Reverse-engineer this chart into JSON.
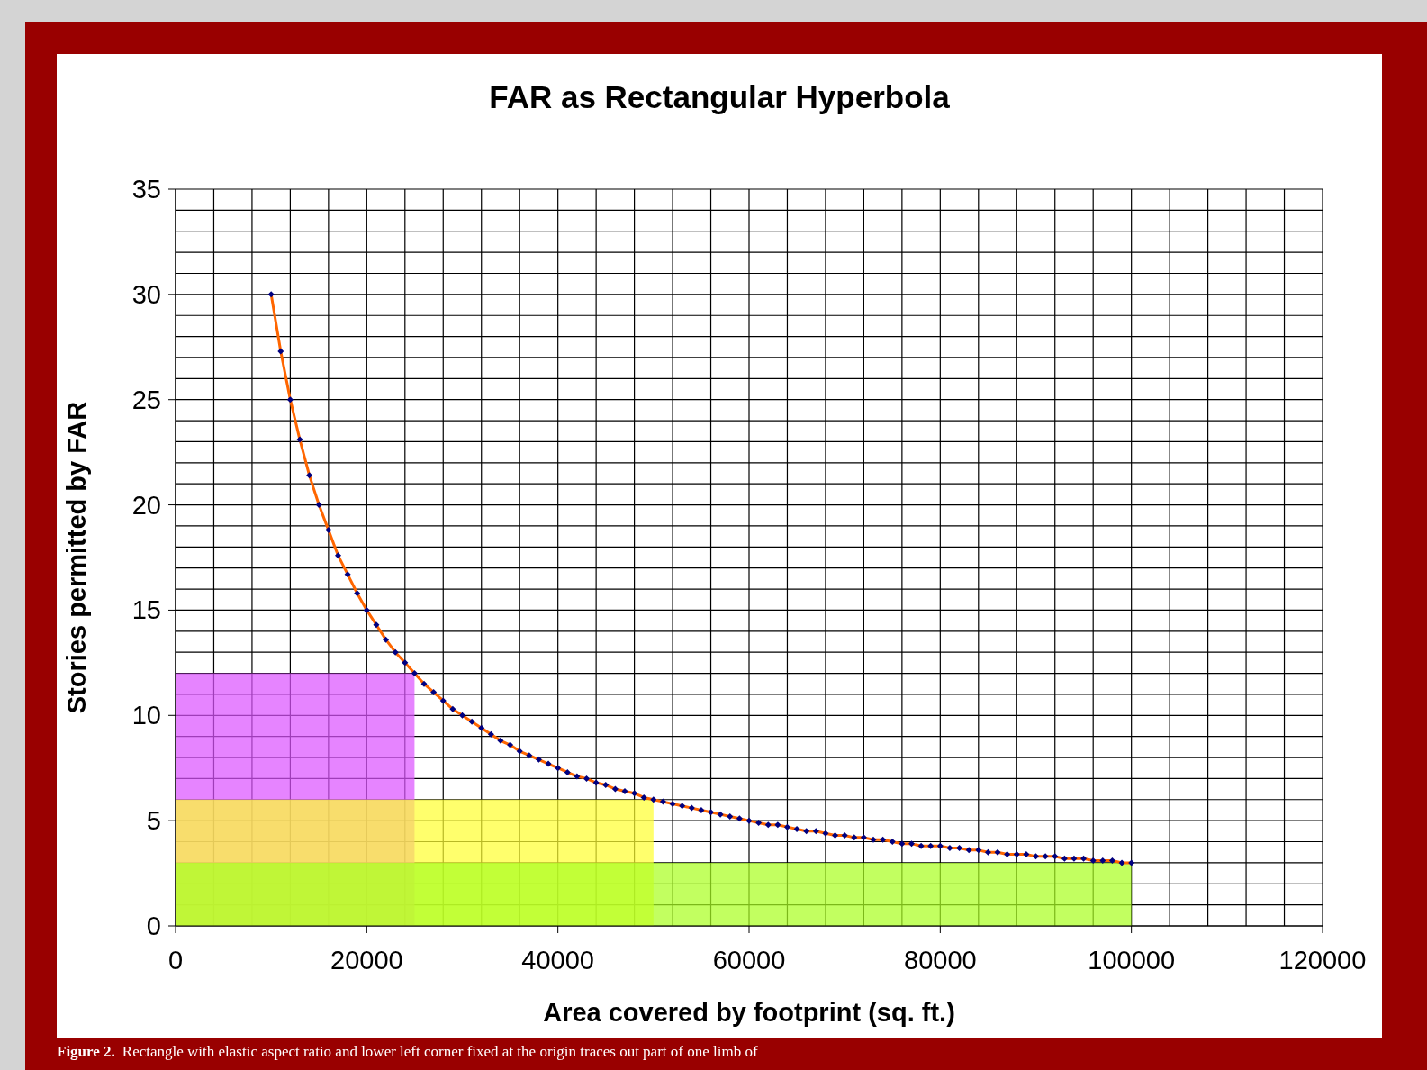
{
  "chart_data": {
    "type": "line",
    "title": "FAR as Rectangular Hyperbola",
    "xlabel": "Area covered by footprint (sq. ft.)",
    "ylabel": "Stories permitted by FAR",
    "series": [
      {
        "type": "area",
        "color": "#dd55ff",
        "x": [
          0,
          25000
        ],
        "values": [
          12,
          12
        ]
      },
      {
        "type": "area",
        "color": "#ffff33",
        "x": [
          0,
          50000
        ],
        "values": [
          6,
          6
        ]
      },
      {
        "type": "area",
        "color": "#aaff22",
        "x": [
          0,
          100000
        ],
        "values": [
          3,
          3
        ]
      },
      {
        "type": "line",
        "color": "#ff6600",
        "x": [
          10000,
          11000,
          12000,
          13000,
          14000,
          15000,
          16000,
          17000,
          18000,
          19000,
          20000,
          21000,
          22000,
          23000,
          24000,
          25000,
          26000,
          27000,
          28000,
          29000,
          30000,
          31000,
          32000,
          33000,
          34000,
          35000,
          36000,
          37000,
          38000,
          39000,
          40000,
          41000,
          42000,
          43000,
          44000,
          45000,
          46000,
          47000,
          48000,
          49000,
          50000,
          51000,
          52000,
          53000,
          54000,
          55000,
          56000,
          57000,
          58000,
          59000,
          60000,
          61000,
          62000,
          63000,
          64000,
          65000,
          66000,
          67000,
          68000,
          69000,
          70000,
          71000,
          72000,
          73000,
          74000,
          75000,
          76000,
          77000,
          78000,
          79000,
          80000,
          81000,
          82000,
          83000,
          84000,
          85000,
          86000,
          87000,
          88000,
          89000,
          90000,
          91000,
          92000,
          93000,
          94000,
          95000,
          96000,
          97000,
          98000,
          99000,
          100000
        ],
        "values": [
          30,
          27.3,
          25,
          23.1,
          21.4,
          20,
          18.8,
          17.6,
          16.7,
          15.8,
          15,
          14.3,
          13.6,
          13,
          12.5,
          12,
          11.5,
          11.1,
          10.7,
          10.3,
          10,
          9.7,
          9.4,
          9.1,
          8.8,
          8.6,
          8.3,
          8.1,
          7.9,
          7.7,
          7.5,
          7.3,
          7.1,
          7,
          6.8,
          6.7,
          6.5,
          6.4,
          6.3,
          6.1,
          6,
          5.9,
          5.8,
          5.7,
          5.6,
          5.5,
          5.4,
          5.3,
          5.2,
          5.1,
          5,
          4.9,
          4.8,
          4.8,
          4.7,
          4.6,
          4.5,
          4.5,
          4.4,
          4.3,
          4.3,
          4.2,
          4.2,
          4.1,
          4.1,
          4,
          3.9,
          3.9,
          3.8,
          3.8,
          3.8,
          3.7,
          3.7,
          3.6,
          3.6,
          3.5,
          3.5,
          3.4,
          3.4,
          3.4,
          3.3,
          3.3,
          3.3,
          3.2,
          3.2,
          3.2,
          3.1,
          3.1,
          3.1,
          3,
          3
        ]
      }
    ],
    "marker": "diamond",
    "line_style": "solid",
    "grid": true,
    "xlim": [
      0,
      120000
    ],
    "xticks": [
      0,
      {
        "value": 4000,
        "label": null
      },
      {
        "value": 8000,
        "label": null
      },
      {
        "value": 12000,
        "label": null
      },
      {
        "value": 16000,
        "label": null
      },
      20000,
      {
        "value": 24000,
        "label": null
      },
      {
        "value": 28000,
        "label": null
      },
      {
        "value": 32000,
        "label": null
      },
      {
        "value": 36000,
        "label": null
      },
      40000,
      {
        "value": 44000,
        "label": null
      },
      {
        "value": 48000,
        "label": null
      },
      {
        "value": 52000,
        "label": null
      },
      {
        "value": 56000,
        "label": null
      },
      60000,
      {
        "value": 64000,
        "label": null
      },
      {
        "value": 68000,
        "label": null
      },
      {
        "value": 72000,
        "label": null
      },
      {
        "value": 76000,
        "label": null
      },
      80000,
      {
        "value": 84000,
        "label": null
      },
      {
        "value": 88000,
        "label": null
      },
      {
        "value": 92000,
        "label": null
      },
      {
        "value": 96000,
        "label": null
      },
      100000,
      {
        "value": 104000,
        "label": null
      },
      {
        "value": 108000,
        "label": null
      },
      {
        "value": 112000,
        "label": null
      },
      {
        "value": 116000,
        "label": null
      },
      120000
    ],
    "ylim": [
      0,
      35
    ],
    "yticks": [
      0,
      {
        "value": 1,
        "label": null
      },
      {
        "value": 2,
        "label": null
      },
      {
        "value": 3,
        "label": null
      },
      {
        "value": 4,
        "label": null
      },
      5,
      {
        "value": 6,
        "label": null
      },
      {
        "value": 7,
        "label": null
      },
      {
        "value": 8,
        "label": null
      },
      {
        "value": 9,
        "label": null
      },
      10,
      {
        "value": 11,
        "label": null
      },
      {
        "value": 12,
        "label": null
      },
      {
        "value": 13,
        "label": null
      },
      {
        "value": 14,
        "label": null
      },
      15,
      {
        "value": 16,
        "label": null
      },
      {
        "value": 17,
        "label": null
      },
      {
        "value": 18,
        "label": null
      },
      {
        "value": 19,
        "label": null
      },
      20,
      {
        "value": 21,
        "label": null
      },
      {
        "value": 22,
        "label": null
      },
      {
        "value": 23,
        "label": null
      },
      {
        "value": 24,
        "label": null
      },
      25,
      {
        "value": 26,
        "label": null
      },
      {
        "value": 27,
        "label": null
      },
      {
        "value": 28,
        "label": null
      },
      {
        "value": 29,
        "label": null
      },
      30,
      {
        "value": 31,
        "label": null
      },
      {
        "value": 32,
        "label": null
      },
      {
        "value": 33,
        "label": null
      },
      {
        "value": 34,
        "label": null
      },
      35
    ],
    "annotations": [
      "Figure 2.",
      "Rectangle with elastic aspect ratio and lower left corner fixed at the origin traces out part of one limb of"
    ]
  }
}
